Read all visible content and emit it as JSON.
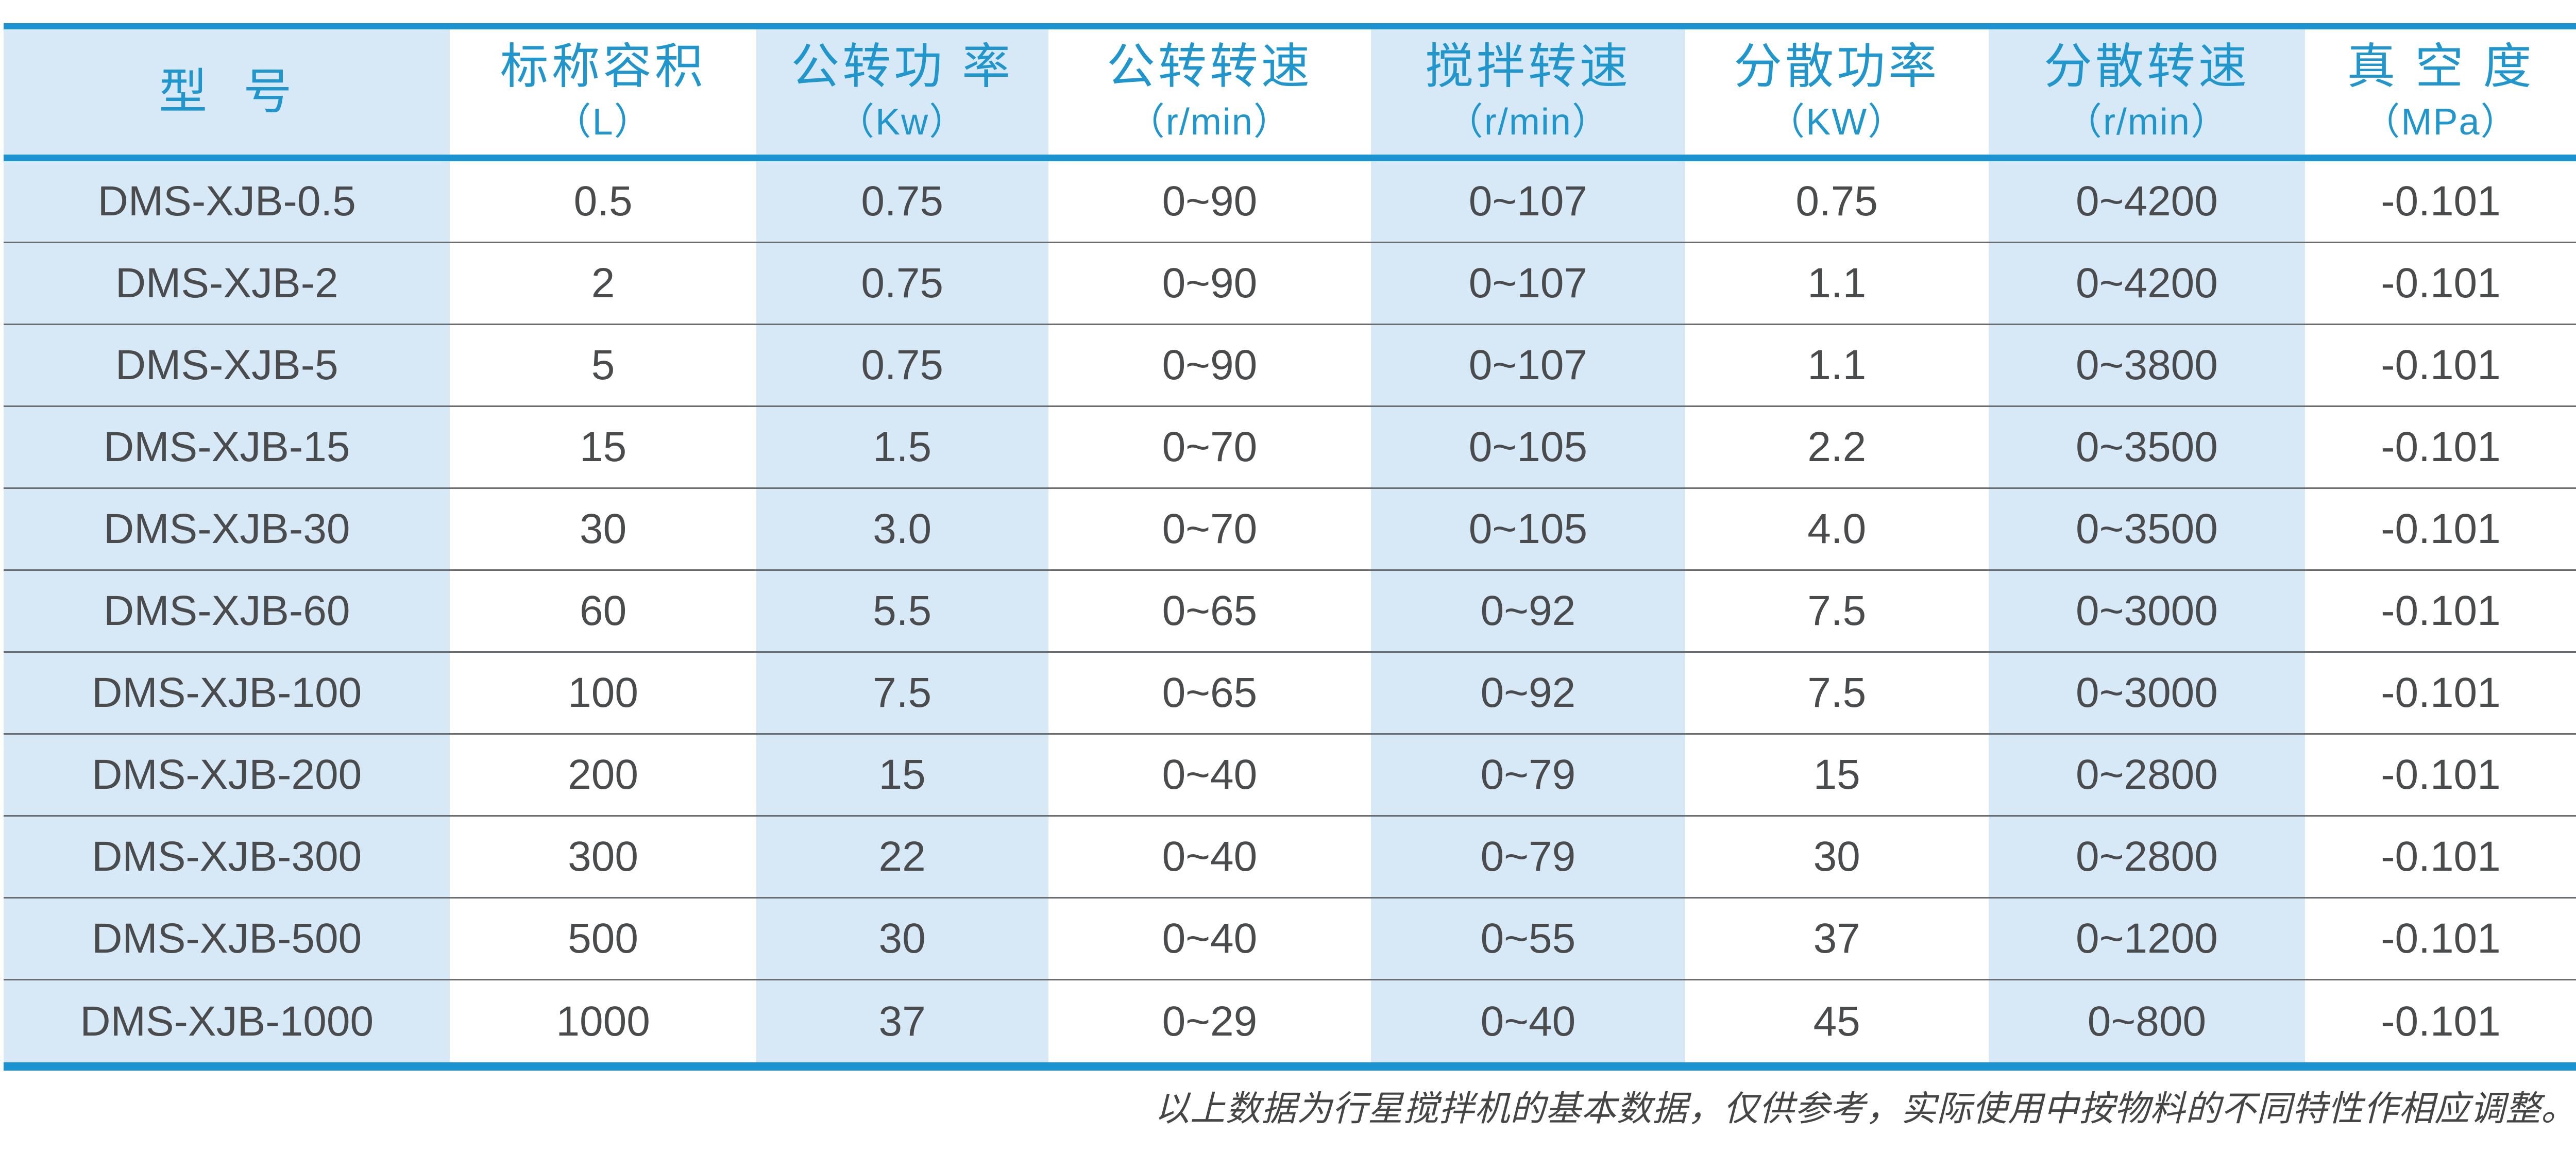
{
  "colors": {
    "accent_blue": "#1b93d0",
    "header_text_blue": "#2196cd",
    "column_tint_blue": "#d7e9f7",
    "data_text": "#4a4b4d",
    "row_divider": "#6a6d70",
    "footnote_text": "#454545"
  },
  "table": {
    "columns": [
      {
        "label": "型  号",
        "unit": "",
        "tinted": true
      },
      {
        "label": "标称容积",
        "unit": "（L）",
        "tinted": false
      },
      {
        "label": "公转功 率",
        "unit": "（Kw）",
        "tinted": true
      },
      {
        "label": "公转转速",
        "unit": "（r/min）",
        "tinted": false
      },
      {
        "label": "搅拌转速",
        "unit": "（r/min）",
        "tinted": true
      },
      {
        "label": "分散功率",
        "unit": "（KW）",
        "tinted": false
      },
      {
        "label": "分散转速",
        "unit": "（r/min）",
        "tinted": true
      },
      {
        "label": "真 空 度",
        "unit": "（MPa）",
        "tinted": false
      }
    ],
    "rows": [
      [
        "DMS-XJB-0.5",
        "0.5",
        "0.75",
        "0~90",
        "0~107",
        "0.75",
        "0~4200",
        "-0.101"
      ],
      [
        "DMS-XJB-2",
        "2",
        "0.75",
        "0~90",
        "0~107",
        "1.1",
        "0~4200",
        "-0.101"
      ],
      [
        "DMS-XJB-5",
        "5",
        "0.75",
        "0~90",
        "0~107",
        "1.1",
        "0~3800",
        "-0.101"
      ],
      [
        "DMS-XJB-15",
        "15",
        "1.5",
        "0~70",
        "0~105",
        "2.2",
        "0~3500",
        "-0.101"
      ],
      [
        "DMS-XJB-30",
        "30",
        "3.0",
        "0~70",
        "0~105",
        "4.0",
        "0~3500",
        "-0.101"
      ],
      [
        "DMS-XJB-60",
        "60",
        "5.5",
        "0~65",
        "0~92",
        "7.5",
        "0~3000",
        "-0.101"
      ],
      [
        "DMS-XJB-100",
        "100",
        "7.5",
        "0~65",
        "0~92",
        "7.5",
        "0~3000",
        "-0.101"
      ],
      [
        "DMS-XJB-200",
        "200",
        "15",
        "0~40",
        "0~79",
        "15",
        "0~2800",
        "-0.101"
      ],
      [
        "DMS-XJB-300",
        "300",
        "22",
        "0~40",
        "0~79",
        "30",
        "0~2800",
        "-0.101"
      ],
      [
        "DMS-XJB-500",
        "500",
        "30",
        "0~40",
        "0~55",
        "37",
        "0~1200",
        "-0.101"
      ],
      [
        "DMS-XJB-1000",
        "1000",
        "37",
        "0~29",
        "0~40",
        "45",
        "0~800",
        "-0.101"
      ]
    ]
  },
  "footnote": "以上数据为行星搅拌机的基本数据，仅供参考，实际使用中按物料的不同特性作相应调整。"
}
